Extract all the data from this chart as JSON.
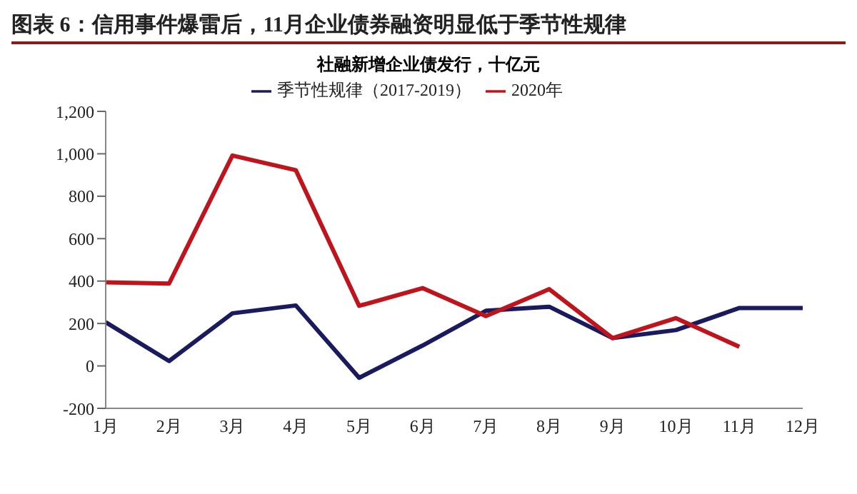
{
  "chart_data": {
    "type": "line",
    "title": "图表 6：信用事件爆雷后，11月企业债券融资明显低于季节性规律",
    "subtitle": "社融新增企业债发行，十亿元",
    "categories": [
      "1月",
      "2月",
      "3月",
      "4月",
      "5月",
      "6月",
      "7月",
      "8月",
      "9月",
      "10月",
      "11月",
      "12月"
    ],
    "series": [
      {
        "name": "季节性规律（2017-2019）",
        "color": "#1a1a5e",
        "values": [
          206,
          23,
          248,
          285,
          -56,
          96,
          260,
          279,
          131,
          169,
          273,
          273
        ]
      },
      {
        "name": "2020年",
        "color": "#c0141c",
        "values": [
          394,
          388,
          992,
          923,
          283,
          367,
          235,
          362,
          131,
          225,
          90,
          null
        ]
      }
    ],
    "ylim": [
      -200,
      1200
    ],
    "yticks": [
      -200,
      0,
      200,
      400,
      600,
      800,
      {
        "value": 1000,
        "label": "1,000"
      },
      {
        "value": 1200,
        "label": "1,200"
      }
    ],
    "legend": "top",
    "marker": "none",
    "line_style": "solid"
  }
}
